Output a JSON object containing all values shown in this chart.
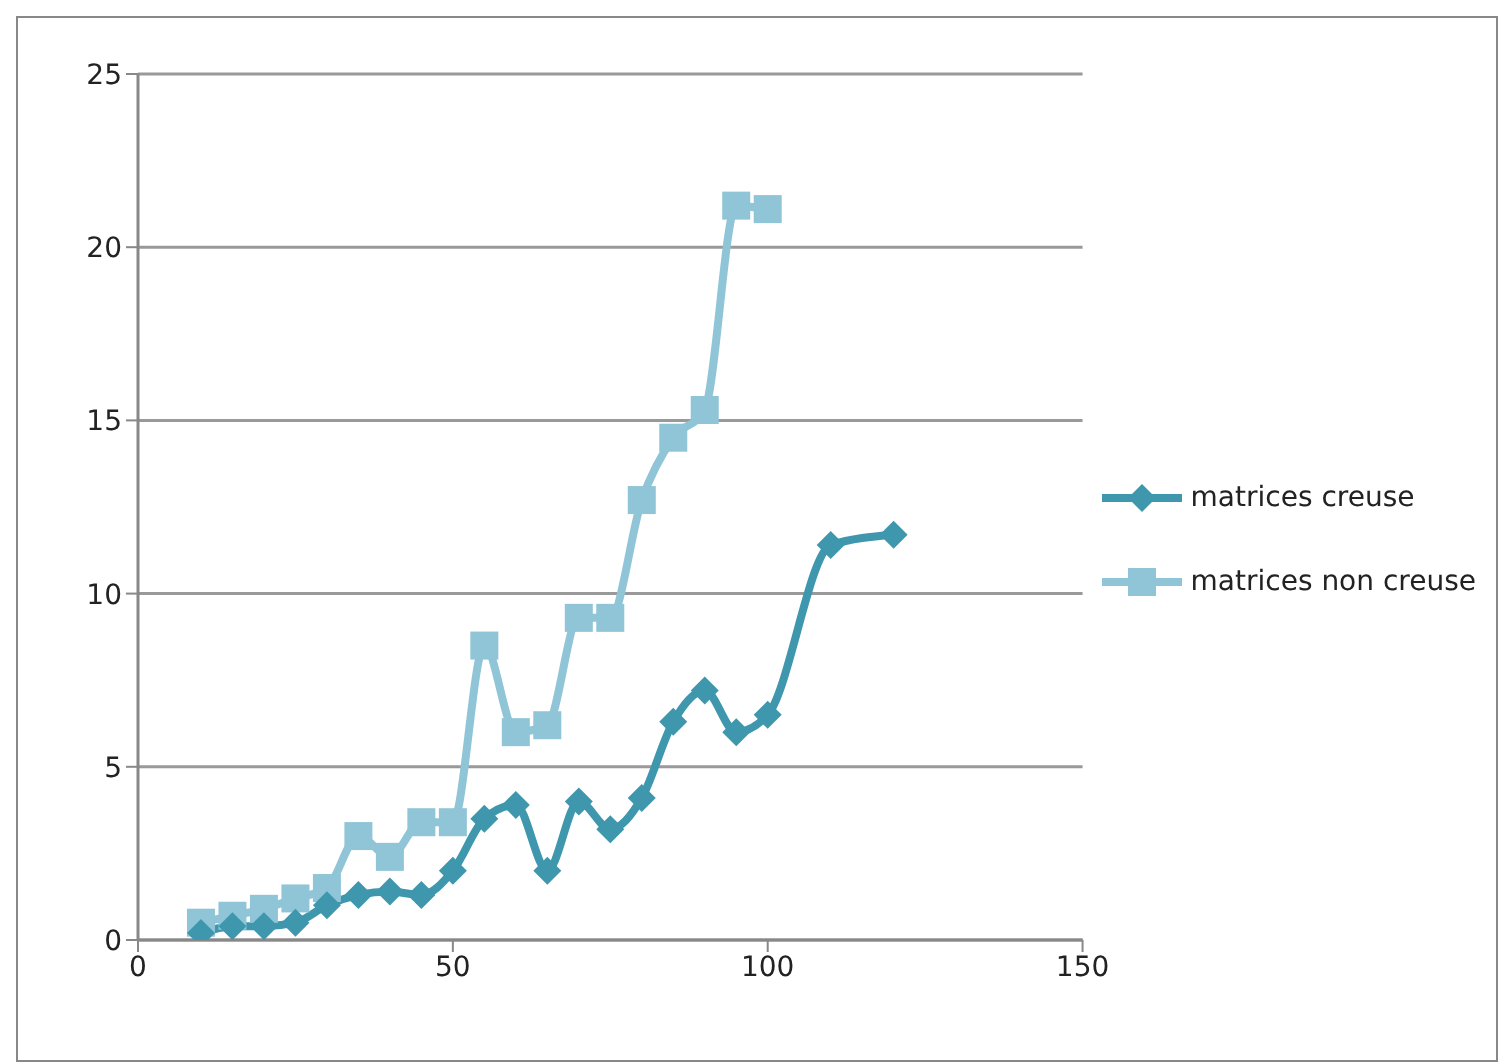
{
  "chart_data": {
    "type": "line",
    "xlim": [
      0,
      150
    ],
    "xticks": [
      0,
      50,
      100,
      150
    ],
    "ylim": [
      0,
      25
    ],
    "yticks": [
      0,
      5,
      10,
      15,
      20,
      25
    ],
    "grid": "y",
    "legend": "right",
    "series": [
      {
        "name": "matrices creuse",
        "color": "#3f97ad",
        "marker": "diamond",
        "x": [
          10,
          15,
          20,
          25,
          30,
          35,
          40,
          45,
          50,
          55,
          60,
          65,
          70,
          75,
          80,
          85,
          90,
          95,
          100,
          110,
          120
        ],
        "values": [
          0.2,
          0.4,
          0.4,
          0.5,
          1.0,
          1.3,
          1.4,
          1.3,
          2.0,
          3.5,
          3.9,
          2.0,
          4.0,
          3.2,
          4.1,
          6.3,
          7.2,
          6.0,
          6.5,
          11.4,
          11.7
        ]
      },
      {
        "name": "matrices non creuse",
        "color": "#8fc5d7",
        "marker": "square",
        "x": [
          10,
          15,
          20,
          25,
          30,
          35,
          40,
          45,
          50,
          55,
          60,
          65,
          70,
          75,
          80,
          85,
          90,
          95,
          100
        ],
        "values": [
          0.5,
          0.7,
          0.9,
          1.2,
          1.5,
          3.0,
          2.4,
          3.4,
          3.4,
          8.5,
          6.0,
          6.2,
          9.3,
          9.3,
          12.7,
          14.5,
          15.3,
          21.2,
          21.1
        ]
      }
    ]
  }
}
